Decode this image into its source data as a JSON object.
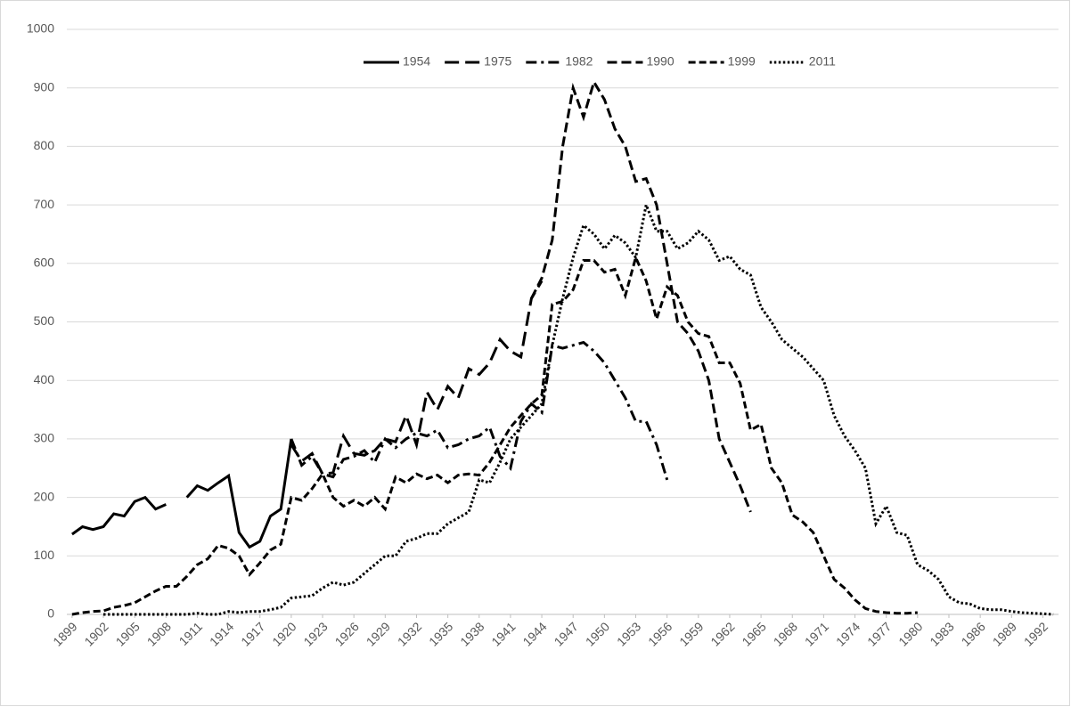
{
  "chart_data": {
    "type": "line",
    "x": [
      1899,
      1900,
      1901,
      1902,
      1903,
      1904,
      1905,
      1906,
      1907,
      1908,
      1909,
      1910,
      1911,
      1912,
      1913,
      1914,
      1915,
      1916,
      1917,
      1918,
      1919,
      1920,
      1921,
      1922,
      1923,
      1924,
      1925,
      1926,
      1927,
      1928,
      1929,
      1930,
      1931,
      1932,
      1933,
      1934,
      1935,
      1936,
      1937,
      1938,
      1939,
      1940,
      1941,
      1942,
      1943,
      1944,
      1945,
      1946,
      1947,
      1948,
      1949,
      1950,
      1951,
      1952,
      1953,
      1954,
      1955,
      1956,
      1957,
      1958,
      1959,
      1960,
      1961,
      1962,
      1963,
      1964,
      1965,
      1966,
      1967,
      1968,
      1969,
      1970,
      1971,
      1972,
      1973,
      1974,
      1975,
      1976,
      1977,
      1978,
      1979,
      1980,
      1981,
      1982,
      1983,
      1984,
      1985,
      1986,
      1987,
      1988,
      1989,
      1990,
      1991,
      1992,
      1993
    ],
    "xlim": [
      1898.5,
      1993.5
    ],
    "xticks": [
      1899,
      1902,
      1905,
      1908,
      1911,
      1914,
      1917,
      1920,
      1923,
      1926,
      1929,
      1932,
      1935,
      1938,
      1941,
      1944,
      1947,
      1950,
      1953,
      1956,
      1959,
      1962,
      1965,
      1968,
      1971,
      1974,
      1977,
      1980,
      1983,
      1986,
      1989,
      1992
    ],
    "ylim": [
      0,
      1000
    ],
    "yticks": [
      0,
      100,
      200,
      300,
      400,
      500,
      600,
      700,
      800,
      900,
      1000
    ],
    "grid": true,
    "legend": "top",
    "series": [
      {
        "name": "1954",
        "color": "#000000",
        "line_style": "solid",
        "values": [
          137,
          150,
          145,
          150,
          172,
          168,
          193,
          200,
          180,
          188,
          null,
          200,
          220,
          212,
          225,
          237,
          140,
          115,
          125,
          168,
          180,
          300,
          null,
          null,
          null,
          null,
          null,
          null,
          null,
          null,
          null,
          null,
          null,
          null,
          null,
          null,
          null,
          null,
          null,
          null,
          null,
          null,
          null,
          null,
          null,
          null,
          null,
          null,
          null,
          null,
          null,
          null,
          null,
          null,
          null,
          null,
          null,
          null,
          null,
          null,
          null,
          null,
          null,
          null,
          null,
          null,
          null,
          null,
          null,
          null,
          null,
          null,
          null,
          null,
          null,
          null,
          null,
          null,
          null,
          null,
          null,
          null,
          null,
          null,
          null,
          null,
          null,
          null,
          null,
          null,
          null,
          null,
          null,
          null,
          null
        ]
      },
      {
        "name": "1975",
        "color": "#000000",
        "line_style": "long-dash",
        "values": [
          null,
          null,
          null,
          null,
          null,
          null,
          null,
          null,
          null,
          null,
          null,
          null,
          null,
          null,
          null,
          null,
          null,
          null,
          null,
          null,
          null,
          290,
          262,
          275,
          240,
          242,
          305,
          275,
          272,
          280,
          300,
          295,
          340,
          290,
          380,
          350,
          390,
          370,
          420,
          410,
          430,
          470,
          450,
          440,
          540,
          570,
          null,
          null,
          null,
          null,
          null,
          null,
          null,
          null,
          null,
          null,
          null,
          null,
          null,
          null,
          null,
          null,
          null,
          null,
          null,
          null,
          null,
          null,
          null,
          null,
          null,
          null,
          null,
          null,
          null,
          null,
          null,
          null,
          null,
          null,
          null,
          null,
          null,
          null,
          null,
          null,
          null,
          null,
          null,
          null,
          null,
          null,
          null,
          null,
          null
        ]
      },
      {
        "name": "1982",
        "color": "#000000",
        "line_style": "dash-dot",
        "values": [
          null,
          null,
          null,
          null,
          null,
          null,
          null,
          null,
          null,
          null,
          null,
          null,
          null,
          null,
          null,
          null,
          null,
          null,
          null,
          null,
          null,
          300,
          255,
          270,
          240,
          235,
          265,
          270,
          280,
          260,
          300,
          285,
          300,
          310,
          305,
          315,
          285,
          290,
          300,
          305,
          320,
          270,
          250,
          330,
          360,
          345,
          460,
          455,
          460,
          465,
          450,
          430,
          400,
          370,
          330,
          330,
          290,
          230,
          null,
          null,
          null,
          null,
          null,
          null,
          null,
          null,
          null,
          null,
          null,
          null,
          null,
          null,
          null,
          null,
          null,
          null,
          null,
          null,
          null,
          null,
          null,
          null,
          null,
          null,
          null,
          null,
          null,
          null,
          null,
          null,
          null,
          null,
          null,
          null,
          null
        ]
      },
      {
        "name": "1990",
        "color": "#000000",
        "line_style": "dash",
        "values": [
          null,
          null,
          null,
          null,
          null,
          null,
          null,
          null,
          null,
          null,
          null,
          null,
          null,
          null,
          null,
          null,
          null,
          null,
          null,
          null,
          null,
          null,
          null,
          null,
          null,
          null,
          null,
          null,
          null,
          null,
          null,
          null,
          null,
          null,
          null,
          null,
          null,
          null,
          null,
          null,
          null,
          null,
          null,
          null,
          540,
          575,
          640,
          800,
          900,
          850,
          910,
          880,
          830,
          800,
          740,
          745,
          700,
          600,
          500,
          480,
          450,
          400,
          300,
          260,
          220,
          175,
          null,
          null,
          null,
          null,
          null,
          null,
          null,
          null,
          null,
          null,
          null,
          null,
          null,
          null,
          null,
          null,
          null,
          null,
          null,
          null,
          null,
          null,
          null,
          null,
          null,
          null,
          null,
          null,
          null
        ]
      },
      {
        "name": "1999",
        "color": "#000000",
        "line_style": "short-dash",
        "values": [
          0,
          3,
          5,
          6,
          12,
          15,
          20,
          30,
          40,
          48,
          48,
          65,
          85,
          95,
          118,
          113,
          100,
          68,
          88,
          110,
          120,
          200,
          195,
          215,
          240,
          200,
          185,
          195,
          185,
          200,
          180,
          235,
          225,
          240,
          232,
          238,
          225,
          238,
          240,
          238,
          260,
          290,
          320,
          340,
          360,
          375,
          530,
          535,
          555,
          605,
          605,
          585,
          590,
          545,
          610,
          570,
          505,
          560,
          545,
          500,
          480,
          475,
          430,
          430,
          395,
          315,
          325,
          250,
          225,
          170,
          158,
          140,
          100,
          60,
          45,
          25,
          10,
          5,
          3,
          2,
          2,
          3,
          null,
          null,
          null,
          null,
          null,
          null,
          null,
          null,
          null,
          null,
          null,
          null,
          null
        ]
      },
      {
        "name": "2011",
        "color": "#000000",
        "line_style": "dot",
        "values": [
          null,
          null,
          null,
          0,
          0,
          0,
          0,
          0,
          0,
          0,
          0,
          0,
          2,
          0,
          0,
          5,
          3,
          5,
          5,
          8,
          12,
          28,
          30,
          32,
          45,
          55,
          50,
          55,
          70,
          85,
          100,
          100,
          125,
          130,
          138,
          138,
          155,
          165,
          175,
          230,
          225,
          260,
          300,
          320,
          340,
          360,
          460,
          540,
          610,
          665,
          650,
          625,
          648,
          635,
          610,
          700,
          655,
          655,
          625,
          635,
          655,
          640,
          605,
          612,
          590,
          580,
          525,
          500,
          470,
          455,
          440,
          420,
          400,
          340,
          305,
          280,
          250,
          155,
          185,
          140,
          135,
          85,
          75,
          60,
          30,
          20,
          18,
          10,
          8,
          8,
          5,
          3,
          2,
          1,
          0
        ]
      }
    ]
  }
}
